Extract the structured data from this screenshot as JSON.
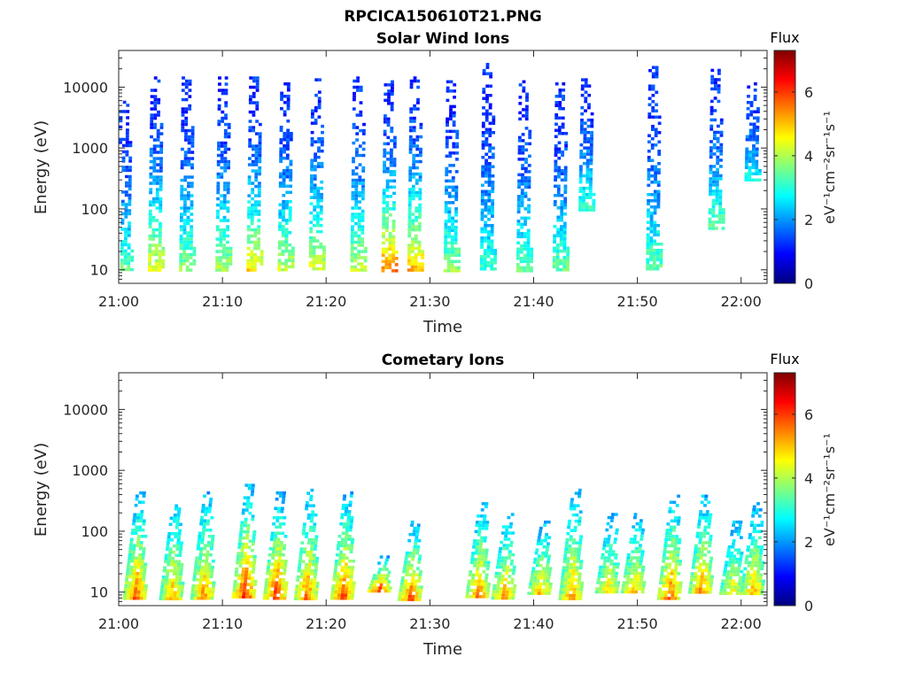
{
  "figure": {
    "filename_title": "RPCICA150610T21.PNG"
  },
  "chart_data": [
    {
      "type": "heatmap",
      "title": "Solar Wind Ions",
      "xlabel": "Time",
      "ylabel": "Energy (eV)",
      "x_tick_labels": [
        "21:00",
        "21:10",
        "21:20",
        "21:30",
        "21:40",
        "21:50",
        "22:00"
      ],
      "x_range_minutes": [
        0,
        62.5
      ],
      "y_scale": "log",
      "y_tick_labels": [
        "10",
        "100",
        "1000",
        "10000"
      ],
      "y_range": [
        6,
        40000
      ],
      "colorbar": {
        "label": "eV⁻¹cm⁻²sr⁻¹s⁻¹",
        "title": "Flux",
        "ticks": [
          "0",
          "2",
          "4",
          "6"
        ],
        "range": [
          0,
          7.3
        ],
        "colormap": "jet"
      },
      "bursts": [
        {
          "t": 0.5,
          "e_low": 10,
          "e_high": 6000,
          "f_peak": 3.5
        },
        {
          "t": 3.5,
          "e_low": 10,
          "e_high": 15000,
          "f_peak": 4.5
        },
        {
          "t": 6.5,
          "e_low": 10,
          "e_high": 15000,
          "f_peak": 3.8
        },
        {
          "t": 10.0,
          "e_low": 10,
          "e_high": 15000,
          "f_peak": 4.0
        },
        {
          "t": 13.0,
          "e_low": 10,
          "e_high": 15000,
          "f_peak": 4.8
        },
        {
          "t": 16.0,
          "e_low": 10,
          "e_high": 12000,
          "f_peak": 4.2
        },
        {
          "t": 19.0,
          "e_low": 10,
          "e_high": 14000,
          "f_peak": 4.4
        },
        {
          "t": 23.0,
          "e_low": 10,
          "e_high": 15000,
          "f_peak": 4.2
        },
        {
          "t": 26.0,
          "e_low": 10,
          "e_high": 13000,
          "f_peak": 5.6
        },
        {
          "t": 28.5,
          "e_low": 10,
          "e_high": 15000,
          "f_peak": 5.2
        },
        {
          "t": 32.0,
          "e_low": 10,
          "e_high": 13000,
          "f_peak": 3.8
        },
        {
          "t": 35.5,
          "e_low": 10,
          "e_high": 25000,
          "f_peak": 3.2
        },
        {
          "t": 39.0,
          "e_low": 10,
          "e_high": 13000,
          "f_peak": 3.5
        },
        {
          "t": 42.5,
          "e_low": 10,
          "e_high": 12000,
          "f_peak": 3.5
        },
        {
          "t": 45.0,
          "e_low": 100,
          "e_high": 14000,
          "f_peak": 3.3
        },
        {
          "t": 51.5,
          "e_low": 10,
          "e_high": 25000,
          "f_peak": 3.5
        },
        {
          "t": 57.5,
          "e_low": 50,
          "e_high": 20000,
          "f_peak": 3.5
        },
        {
          "t": 61.0,
          "e_low": 300,
          "e_high": 12000,
          "f_peak": 3.0
        }
      ]
    },
    {
      "type": "heatmap",
      "title": "Cometary Ions",
      "xlabel": "Time",
      "ylabel": "Energy (eV)",
      "x_tick_labels": [
        "21:00",
        "21:10",
        "21:20",
        "21:30",
        "21:40",
        "21:50",
        "22:00"
      ],
      "x_range_minutes": [
        0,
        62.5
      ],
      "y_scale": "log",
      "y_tick_labels": [
        "10",
        "100",
        "1000",
        "10000"
      ],
      "y_range": [
        6,
        40000
      ],
      "colorbar": {
        "label": "eV⁻¹cm⁻²sr⁻¹s⁻¹",
        "title": "Flux",
        "ticks": [
          "0",
          "2",
          "4",
          "6"
        ],
        "range": [
          0,
          7.3
        ],
        "colormap": "jet"
      },
      "bursts": [
        {
          "t": 2.0,
          "e_low": 8,
          "e_high": 450,
          "f_peak": 6.0
        },
        {
          "t": 5.5,
          "e_low": 8,
          "e_high": 350,
          "f_peak": 5.3
        },
        {
          "t": 8.5,
          "e_low": 8,
          "e_high": 450,
          "f_peak": 5.5
        },
        {
          "t": 12.5,
          "e_low": 8,
          "e_high": 600,
          "f_peak": 6.4
        },
        {
          "t": 15.5,
          "e_low": 8,
          "e_high": 450,
          "f_peak": 6.3
        },
        {
          "t": 18.5,
          "e_low": 8,
          "e_high": 500,
          "f_peak": 5.8
        },
        {
          "t": 22.0,
          "e_low": 8,
          "e_high": 450,
          "f_peak": 6.2
        },
        {
          "t": 25.5,
          "e_low": 10,
          "e_high": 40,
          "f_peak": 6.6
        },
        {
          "t": 28.5,
          "e_low": 8,
          "e_high": 150,
          "f_peak": 6.0
        },
        {
          "t": 35.0,
          "e_low": 8,
          "e_high": 300,
          "f_peak": 5.8
        },
        {
          "t": 37.5,
          "e_low": 8,
          "e_high": 200,
          "f_peak": 5.5
        },
        {
          "t": 41.0,
          "e_low": 10,
          "e_high": 150,
          "f_peak": 5.2
        },
        {
          "t": 44.0,
          "e_low": 8,
          "e_high": 500,
          "f_peak": 5.5
        },
        {
          "t": 47.5,
          "e_low": 10,
          "e_high": 200,
          "f_peak": 5.0
        },
        {
          "t": 50.0,
          "e_low": 10,
          "e_high": 200,
          "f_peak": 5.2
        },
        {
          "t": 53.5,
          "e_low": 8,
          "e_high": 400,
          "f_peak": 6.0
        },
        {
          "t": 56.5,
          "e_low": 10,
          "e_high": 400,
          "f_peak": 5.6
        },
        {
          "t": 59.5,
          "e_low": 10,
          "e_high": 150,
          "f_peak": 4.8
        },
        {
          "t": 61.5,
          "e_low": 10,
          "e_high": 300,
          "f_peak": 5.3
        }
      ]
    }
  ]
}
